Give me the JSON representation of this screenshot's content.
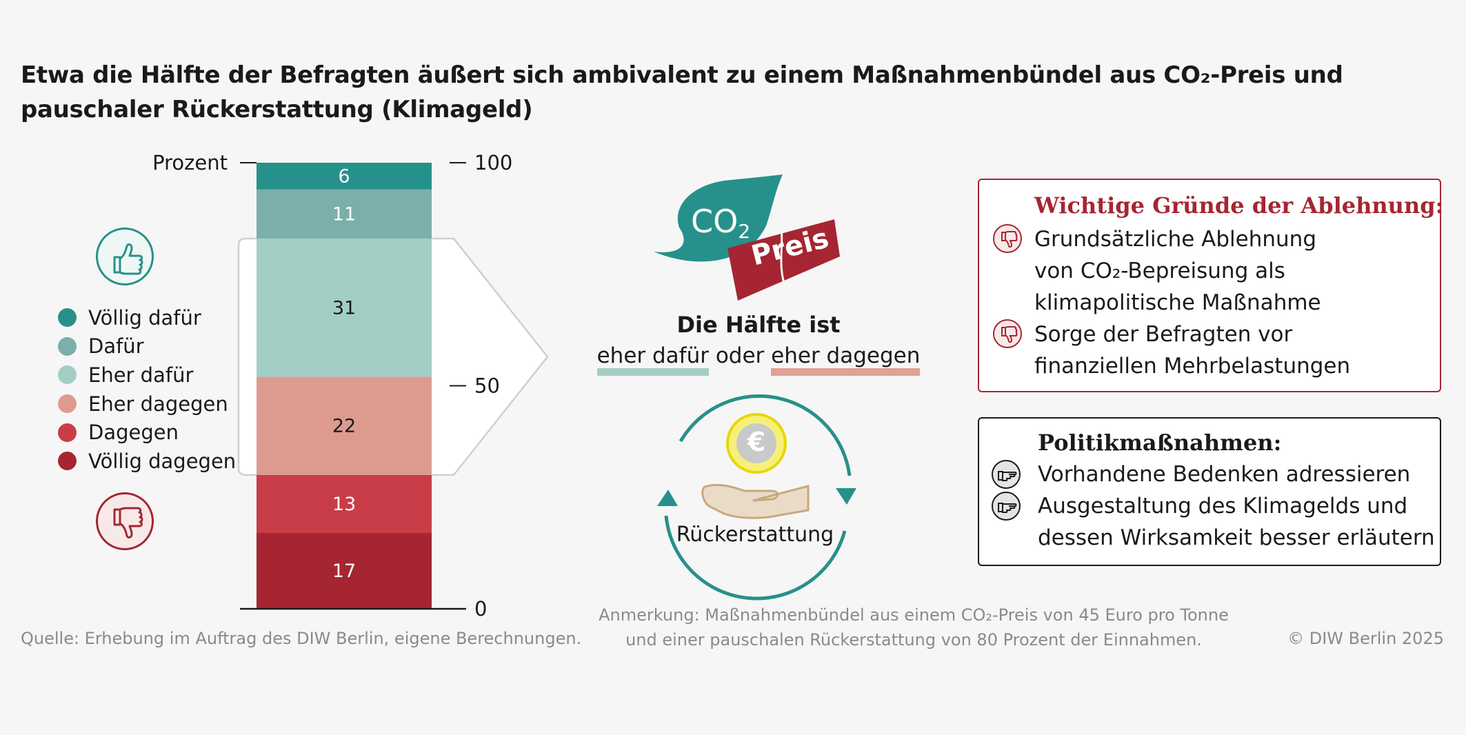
{
  "title": "Etwa die Hälfte der Befragten äußert sich ambivalent zu einem Maßnahmenbündel aus CO₂-Preis und pauschaler Rückerstattung (Klimageld)",
  "chart_data": {
    "type": "bar",
    "stacked": true,
    "ylabel": "Prozent",
    "ylim": [
      0,
      100
    ],
    "yticks": [
      0,
      50,
      100
    ],
    "series": [
      {
        "name": "Völlig dagegen",
        "value": 17,
        "color": "#a52632"
      },
      {
        "name": "Dagegen",
        "value": 13,
        "color": "#c83d48"
      },
      {
        "name": "Eher dagegen",
        "value": 22,
        "color": "#dd9b90"
      },
      {
        "name": "Eher dafür",
        "value": 31,
        "color": "#a2cec5"
      },
      {
        "name": "Dafür",
        "value": 11,
        "color": "#7aafab"
      },
      {
        "name": "Völlig dafür",
        "value": 6,
        "color": "#26918a"
      }
    ],
    "legend_order": [
      "Völlig dafür",
      "Dafür",
      "Eher dafür",
      "Eher dagegen",
      "Dagegen",
      "Völlig dagegen"
    ],
    "highlight": [
      "Eher dafür",
      "Eher dagegen"
    ]
  },
  "center": {
    "co2_label": "CO",
    "co2_sub": "2",
    "preis_label": "Preis",
    "halfte_title": "Die Hälfte ist",
    "sub_for": "eher dafür",
    "sub_oder": " oder ",
    "sub_against": "eher dagegen",
    "euro_symbol": "€",
    "rueck_label": "Rückerstattung"
  },
  "reasons_box": {
    "heading": "Wichtige Gründe der Ablehnung:",
    "item1_lines": [
      "Grundsätzliche Ablehnung",
      "von CO₂-Bepreisung als",
      "klimapolitische Maßnahme"
    ],
    "item2_lines": [
      "Sorge der Befragten vor",
      "finanziellen Mehrbelastungen"
    ]
  },
  "policy_box": {
    "heading": "Politikmaßnahmen:",
    "item1_lines": [
      "Vorhandene Bedenken adressieren"
    ],
    "item2_lines": [
      "Ausgestaltung des Klimageld­s und",
      "dessen Wirksamkeit besser erläutern"
    ]
  },
  "footer": {
    "source": "Quelle: Erhebung im Auftrag des DIW Berlin, eigene Berechnungen.",
    "note_line1": "Anmerkung: Maßnahmenbündel aus einem CO₂-Preis von 45 Euro pro Tonne",
    "note_line2": "und einer pauschalen Rückerstattung von 80 Prozent der Einnahmen.",
    "copyright": "© DIW Berlin 2025"
  },
  "colors": {
    "teal": "#26918a",
    "red": "#a52632"
  },
  "icons": {
    "thumbs_up": "thumbs-up-icon",
    "thumbs_down": "thumbs-down-icon",
    "leaf": "leaf-icon",
    "price_tag": "price-tag-icon",
    "euro_coin": "euro-coin-icon",
    "hand": "open-hand-icon",
    "cycle_arrows": "cycle-arrows-icon",
    "pointing_hand": "pointing-hand-icon"
  }
}
